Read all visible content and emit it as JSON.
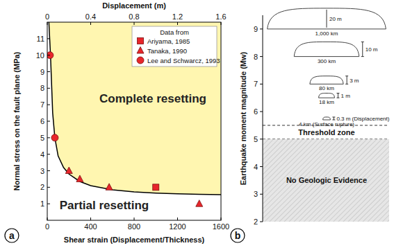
{
  "chart_data": [
    {
      "type": "scatter",
      "panel": "a",
      "xlabel": "Shear strain (Displacement/Thickness)",
      "x2label": "Displacement (m)",
      "ylabel": "Normal stress on the fault plane (MPa)",
      "xlim": [
        0,
        1600
      ],
      "xticks": [
        0,
        400,
        800,
        1200,
        1600
      ],
      "x2lim": [
        0,
        1.6
      ],
      "x2ticks": [
        0,
        0.4,
        0.8,
        1.2,
        1.6
      ],
      "ylim": [
        0,
        12
      ],
      "yticks": [
        1,
        2,
        3,
        4,
        5,
        6,
        7,
        8,
        9,
        10,
        11
      ],
      "legend": "upper right",
      "legend_title": "Data from",
      "series": [
        {
          "name": "Ariyama, 1985",
          "color": "#e8262b",
          "marker": "square",
          "x": [
            1000
          ],
          "values": [
            2.0
          ]
        },
        {
          "name": "Tanaka, 1990",
          "color": "#e8262b",
          "marker": "triangle",
          "x": [
            200,
            300,
            570,
            1400
          ],
          "values": [
            3.0,
            2.5,
            2.0,
            1.0
          ]
        },
        {
          "name": "Lee and Schwarcz, 1993",
          "color": "#e8262b",
          "marker": "circle",
          "x": [
            25,
            70
          ],
          "values": [
            10,
            5
          ]
        }
      ],
      "boundary": {
        "color": "#000000",
        "x": [
          15,
          30,
          50,
          70,
          100,
          150,
          200,
          300,
          400,
          600,
          800,
          1000,
          1200,
          1400,
          1600
        ],
        "values": [
          12,
          10,
          6.5,
          5,
          3.9,
          3.2,
          2.8,
          2.35,
          2.1,
          1.85,
          1.72,
          1.65,
          1.6,
          1.57,
          1.55
        ]
      },
      "annotations": [
        "Complete resetting",
        "Partial resetting"
      ]
    },
    {
      "type": "rupture_diagram",
      "panel": "b",
      "ylabel": "Earthquake moment magnitude (Mw)",
      "ylim": [
        2,
        9.5
      ],
      "yticks": [
        2,
        3,
        4,
        5,
        6,
        7,
        8,
        9
      ],
      "ruptures": [
        {
          "mw": 9,
          "length_km": 1000,
          "length_label": "1,000 km",
          "displacement_m": 20,
          "displacement_label": "20 m"
        },
        {
          "mw": 8,
          "length_km": 300,
          "length_label": "300 km",
          "displacement_m": 10,
          "displacement_label": "10 m"
        },
        {
          "mw": 7,
          "length_km": 80,
          "length_label": "80 km",
          "displacement_m": 3,
          "displacement_label": "3 m"
        },
        {
          "mw": 6.5,
          "length_km": 18,
          "length_label": "18 km",
          "displacement_m": 1,
          "displacement_label": "1 m"
        },
        {
          "mw": 5.7,
          "length_km": 4,
          "length_label": "4 km (Surface rupture)",
          "displacement_m": 0.3,
          "displacement_label": "0.3 m (Displacement)"
        }
      ],
      "zones": [
        {
          "label": "Threshold zone",
          "range": [
            5.0,
            5.5
          ]
        },
        {
          "label": "No Geologic Evidence",
          "range": [
            2,
            5
          ]
        }
      ]
    }
  ]
}
